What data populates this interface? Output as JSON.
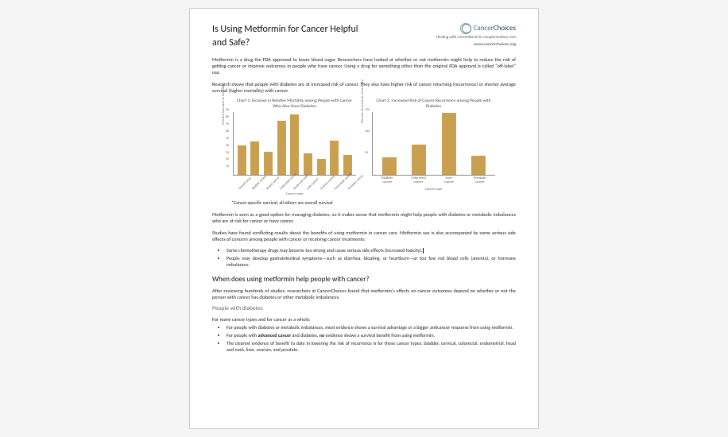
{
  "title": "Is Using Metformin for Cancer Helpful and Safe?",
  "logo": {
    "brand_light": "Cancer",
    "brand_bold": "Choices",
    "tagline": "Healing with conventional\n& complementary care",
    "url": "www.cancerchoices.org",
    "ring_color_outer": "#7aa896",
    "ring_color_inner": "#5a8a76"
  },
  "para1": "Metformin is a drug the FDA approved to lower blood sugar. Researchers have looked at whether or not metformin might help to reduce the risk of getting cancer or improve outcomes in people who have cancer. Using a drug for something other than the original FDA approval is called \"off-label\" use.",
  "para2": "Research shows that people with diabetes are at increased risk of cancer. They also have higher risk of cancer returning (recurrence) or shorter average survival (higher mortality) with cancer.",
  "chart1": {
    "type": "bar",
    "title": "Chart 1: Increase in Relative Mortality among People with Cancer Who Also Have Diabetes",
    "ylabel": "Percent increase in mortality",
    "xlabel": "Cancer type",
    "ylim": [
      0,
      90
    ],
    "ytick_step": 10,
    "categories": [
      "Overall cases",
      "Bladder cancer",
      "Breast cancer",
      "Colorectal cancer",
      "Head and neck*",
      "Liver cancer",
      "Ovarian cancer",
      "Pancreatic cancer",
      "Prostate cancer"
    ],
    "values": [
      41,
      47,
      32,
      76,
      85,
      30,
      22,
      48,
      28
    ],
    "bar_color": "#c9a050",
    "background_color": "#ffffff",
    "axis_color": "#888888",
    "label_fontsize": 4.5,
    "title_fontsize": 5.5
  },
  "chart2": {
    "type": "bar",
    "title": "Chart 2: Increased Risk of Cancer Recurrence among People with Diabetes",
    "ylabel": "Percent increase in recurrence",
    "xlabel": "Cancer type",
    "ylim": [
      0,
      150
    ],
    "ytick_step": 50,
    "categories": [
      "Bladder cancer",
      "Colorectal cancer",
      "Liver cancer",
      "Prostate cancer"
    ],
    "values": [
      40,
      70,
      145,
      45
    ],
    "bar_color": "#c9a050",
    "background_color": "#ffffff",
    "axis_color": "#888888",
    "label_fontsize": 4.5,
    "title_fontsize": 5.5
  },
  "footnote": "*Cancer-specific survival; all others are overall survival",
  "para3": "Metformin is seen as a good option for managing diabetes, so it makes sense that metformin might help people with diabetes or metabolic imbalances who are at risk for cancer or have cancer.",
  "para4": "Studies have found conflicting results about the benefits of using metformin in cancer care. Metformin use is also accompanied by some serious side effects of concern among people with cancer or receiving cancer treatments:",
  "bullets1": [
    "Some chemotherapy drugs may become too strong and cause serious side effects (increased toxicity).",
    "People may develop gastrointestinal symptoms—such as diarrhea, bloating, or heartburn—or too few red blood cells (anemia), or hormone imbalances."
  ],
  "h2": "When does using metformin help people with cancer?",
  "para5": "After reviewing hundreds of studies, researchers at CancerChoices found that metformin's effects on cancer outcomes depend on whether or not the person with cancer has diabetes or other metabolic imbalances.",
  "h3": "People with diabetes",
  "para6": "For many cancer types and for cancer as a whole:",
  "bullets2": [
    "For people with diabetes or metabolic imbalances, most evidence shows a survival advantage or a bigger anticancer response from using metformin.",
    "For people with <b>advanced cancer</b> and diabetes, <b>no</b> evidence shows a survival benefit from using metformin.",
    "The clearest evidence of benefit to date in lowering the risk of recurrence is for these cancer types: bladder, cervical, colorectal, endometrial, head and neck, liver, ovarian, and prostate."
  ]
}
